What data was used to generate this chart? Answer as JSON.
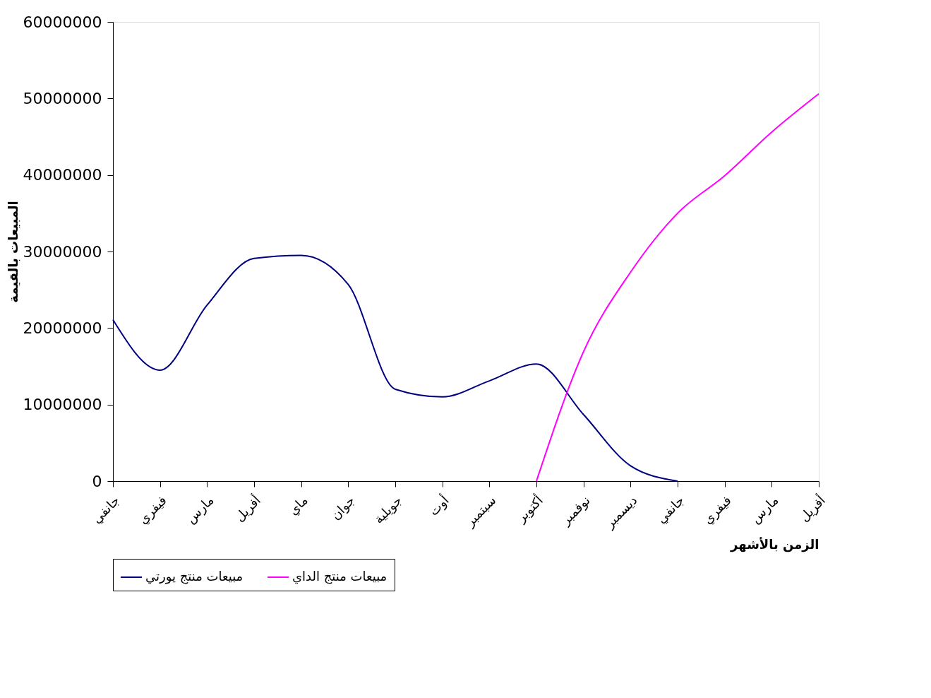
{
  "chart_data": {
    "type": "line",
    "xlabel": "الزمن بالأشهر",
    "ylabel": "المبيعات بالقيمة",
    "categories": [
      "جانفي",
      "فيفري",
      "مارس",
      "أفريل",
      "ماي",
      "جوان",
      "جويلية",
      "أوت",
      "سبتمبر",
      "أكتوبر",
      "نوفمبر",
      "ديسمبر",
      "جانفي",
      "فيفري",
      "مارس",
      "أفريل"
    ],
    "ylim": [
      0,
      60000000
    ],
    "yticks": [
      0,
      10000000,
      20000000,
      30000000,
      40000000,
      50000000,
      60000000
    ],
    "grid": false,
    "legend": "bottom",
    "marker": "none",
    "line_style": "solid",
    "series": [
      {
        "name": "مبيعات منتج يورتي",
        "color": "#000080",
        "values": [
          21100000,
          14500000,
          23000000,
          29100000,
          29500000,
          25700000,
          12000000,
          11000000,
          13100000,
          15300000,
          8700000,
          2000000,
          0,
          null,
          null,
          null
        ]
      },
      {
        "name": "مبيعات منتج الداي",
        "color": "#ff00ff",
        "values": [
          null,
          null,
          null,
          null,
          null,
          null,
          null,
          null,
          null,
          0,
          16900000,
          27300000,
          35000000,
          39900000,
          45600000,
          50600000
        ]
      }
    ]
  }
}
